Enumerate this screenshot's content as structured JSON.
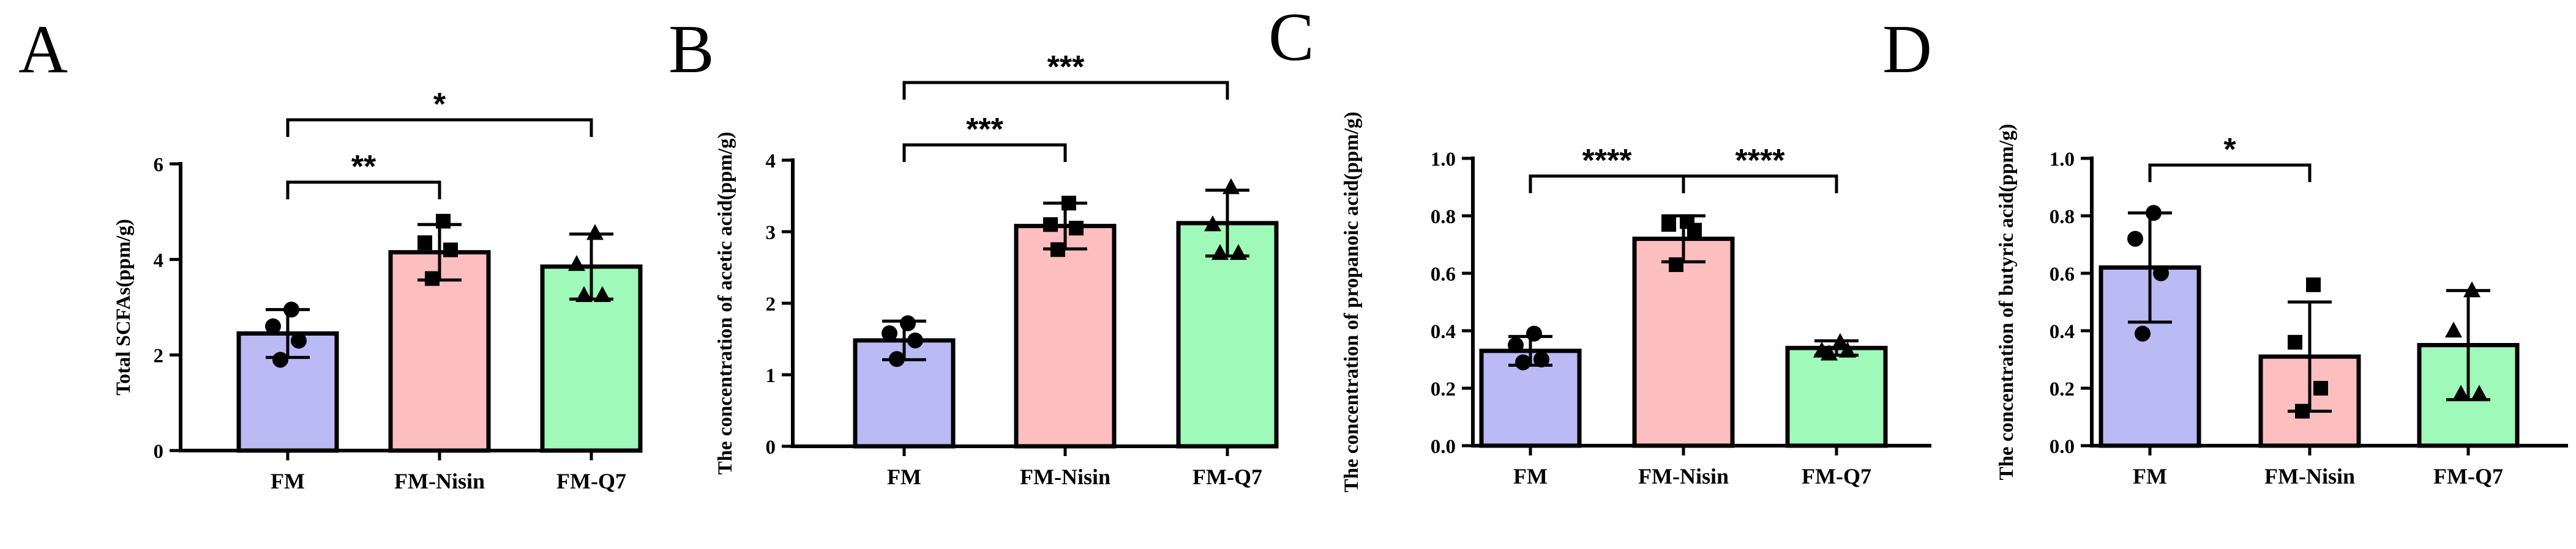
{
  "colors": {
    "FM": "#babaf5",
    "FM-Nisin": "#fcbebe",
    "FM-Q7": "#9ff9b9"
  },
  "chart_data": [
    {
      "panel": "A",
      "type": "bar",
      "ylabel": "Total SCFAs(ppm/g)",
      "ylim": [
        0,
        6
      ],
      "yticks": [
        0,
        2,
        4,
        6
      ],
      "categories": [
        "FM",
        "FM-Nisin",
        "FM-Q7"
      ],
      "markers": [
        "circle",
        "square",
        "triangle"
      ],
      "values": [
        2.45,
        4.15,
        3.85
      ],
      "sd": [
        0.5,
        0.58,
        0.68
      ],
      "points": [
        [
          1.9,
          2.3,
          2.6,
          2.95
        ],
        [
          3.6,
          4.2,
          4.35,
          4.8
        ],
        [
          3.25,
          3.25,
          3.9,
          4.55
        ]
      ],
      "significance": [
        {
          "from": 0,
          "to": 1,
          "label": "**"
        },
        {
          "from": 0,
          "to": 2,
          "label": "*"
        }
      ]
    },
    {
      "panel": "B",
      "type": "bar",
      "ylabel": "The concentration of acetic acid(ppm/g)",
      "ylim": [
        0,
        4
      ],
      "yticks": [
        0,
        1,
        2,
        3,
        4
      ],
      "categories": [
        "FM",
        "FM-Nisin",
        "FM-Q7"
      ],
      "markers": [
        "circle",
        "square",
        "triangle"
      ],
      "values": [
        1.48,
        3.08,
        3.12
      ],
      "sd": [
        0.27,
        0.32,
        0.46
      ],
      "points": [
        [
          1.22,
          1.48,
          1.58,
          1.72
        ],
        [
          2.75,
          3.05,
          3.1,
          3.4
        ],
        [
          2.7,
          2.7,
          3.1,
          3.62
        ]
      ],
      "significance": [
        {
          "from": 0,
          "to": 1,
          "label": "***"
        },
        {
          "from": 0,
          "to": 2,
          "label": "***"
        }
      ]
    },
    {
      "panel": "C",
      "type": "bar",
      "ylabel": "The concentration of propanoic acid(ppm/g)",
      "ylim": [
        0,
        1.0
      ],
      "yticks": [
        0.0,
        0.2,
        0.4,
        0.6,
        0.8,
        1.0
      ],
      "categories": [
        "FM",
        "FM-Nisin",
        "FM-Q7"
      ],
      "markers": [
        "circle",
        "square",
        "triangle"
      ],
      "values": [
        0.33,
        0.72,
        0.34
      ],
      "sd": [
        0.05,
        0.08,
        0.025
      ],
      "points": [
        [
          0.29,
          0.3,
          0.35,
          0.39
        ],
        [
          0.63,
          0.75,
          0.77,
          0.78
        ],
        [
          0.32,
          0.33,
          0.33,
          0.36
        ]
      ],
      "significance": [
        {
          "from": 0,
          "to": 1,
          "label": "****"
        },
        {
          "from": 1,
          "to": 2,
          "label": "****"
        }
      ]
    },
    {
      "panel": "D",
      "type": "bar",
      "ylabel": "The concentration of butyric acid(ppm/g)",
      "ylim": [
        0,
        1.0
      ],
      "yticks": [
        0.0,
        0.2,
        0.4,
        0.6,
        0.8,
        1.0
      ],
      "categories": [
        "FM",
        "FM-Nisin",
        "FM-Q7"
      ],
      "markers": [
        "circle",
        "square",
        "triangle"
      ],
      "values": [
        0.62,
        0.31,
        0.35
      ],
      "sd": [
        0.19,
        0.19,
        0.19
      ],
      "points": [
        [
          0.39,
          0.6,
          0.72,
          0.81
        ],
        [
          0.12,
          0.2,
          0.36,
          0.56
        ],
        [
          0.18,
          0.18,
          0.4,
          0.54
        ]
      ],
      "significance": [
        {
          "from": 0,
          "to": 1,
          "label": "*"
        }
      ]
    }
  ]
}
